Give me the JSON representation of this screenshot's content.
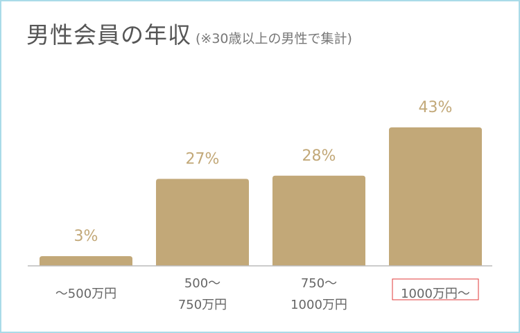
{
  "header": {
    "title": "男性会員の年収",
    "note": "(※30歳以上の男性で集計)"
  },
  "chart_data": {
    "type": "bar",
    "categories": [
      [
        "～500万円"
      ],
      [
        "500～",
        "750万円"
      ],
      [
        "750～",
        "1000万円"
      ],
      [
        "1000万円～"
      ]
    ],
    "values": [
      3,
      27,
      28,
      43
    ],
    "value_labels": [
      "3%",
      "27%",
      "28%",
      "43%"
    ],
    "unit": "%",
    "ylim": [
      0,
      43
    ],
    "highlighted_category_index": 3,
    "colors": {
      "bar": "#c2a878",
      "axis": "#bbbbbb",
      "highlight_box": "#e23a3a",
      "frame": "#a9dbe8"
    },
    "grid": false,
    "legend": "none"
  }
}
